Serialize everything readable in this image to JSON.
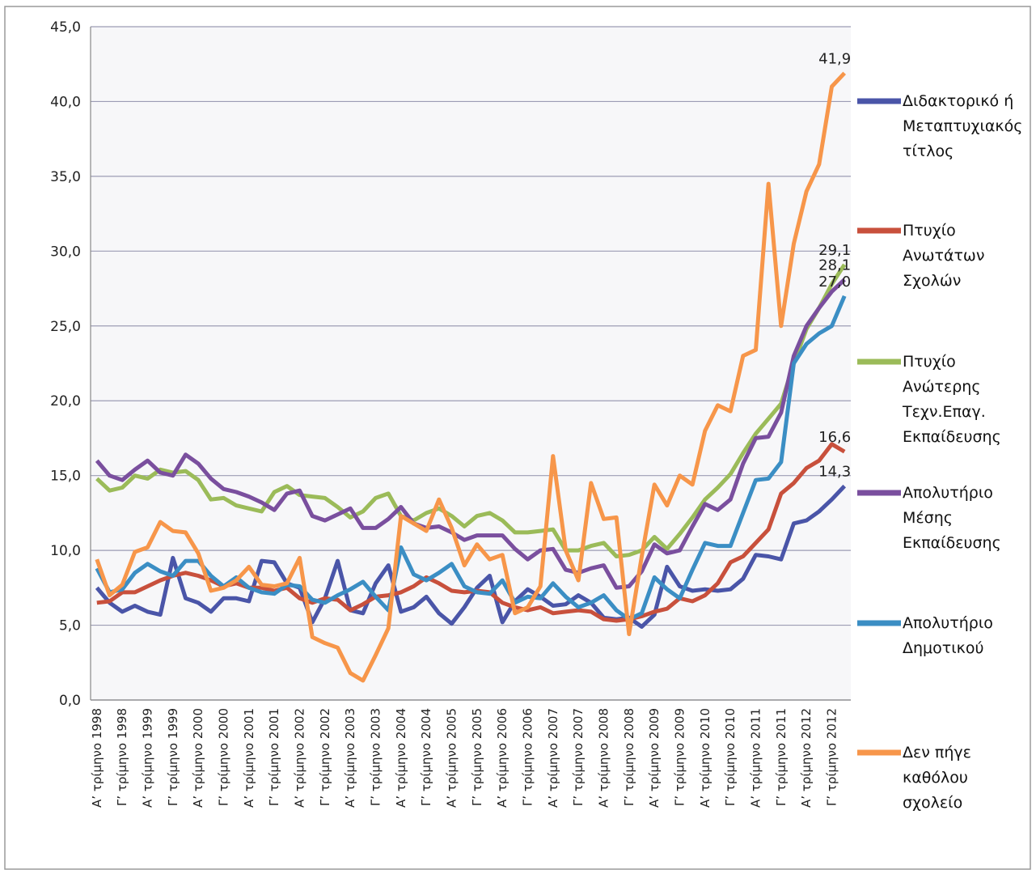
{
  "chart_data": {
    "type": "line",
    "categories": [
      "Α’ τρίμηνο 1998",
      null,
      "Γ’ τρίμηνο 1998",
      null,
      "Α’ τρίμηνο 1999",
      null,
      "Γ’ τρίμηνο 1999",
      null,
      "Α’ τρίμηνο 2000",
      null,
      "Γ’ τρίμηνο 2000",
      null,
      "Α’ τρίμηνο 2001",
      null,
      "Γ’ τρίμηνο 2001",
      null,
      "Α’ τρίμηνο 2002",
      null,
      "Γ’ τρίμηνο 2002",
      null,
      "Α’ τρίμηνο 2003",
      null,
      "Γ’ τρίμηνο 2003",
      null,
      "Α’ τρίμηνο 2004",
      null,
      "Γ’ τρίμηνο 2004",
      null,
      "Α’ τρίμηνο 2005",
      null,
      "Γ’ τρίμηνο 2005",
      null,
      "Α’ τρίμηνο 2006",
      null,
      "Γ’ τρίμηνο 2006",
      null,
      "Α’ τρίμηνο 2007",
      null,
      "Γ’ τρίμηνο 2007",
      null,
      "Α’ τρίμηνο 2008",
      null,
      "Γ’ τρίμηνο 2008",
      null,
      "Α’ τρίμηνο 2009",
      null,
      "Γ’ τρίμηνο 2009",
      null,
      "Α’ τρίμηνο 2010",
      null,
      "Γ’ τρίμηνο 2010",
      null,
      "Α’ τρίμηνο 2011",
      null,
      "Γ’ τρίμηνο 2011",
      null,
      "Α’ τρίμηνο 2012",
      null,
      "Γ’ τρίμηνο 2012",
      null
    ],
    "series": [
      {
        "name": "Διδακτορικό ή Μεταπτυχιακός τίτλος",
        "color": "#4a55a8",
        "values": [
          7.5,
          6.5,
          5.9,
          6.3,
          5.9,
          5.7,
          9.5,
          6.8,
          6.5,
          5.9,
          6.8,
          6.8,
          6.6,
          9.3,
          9.2,
          7.8,
          7.5,
          5.2,
          6.8,
          9.3,
          6.0,
          5.8,
          7.8,
          9.0,
          5.9,
          6.2,
          6.9,
          5.8,
          5.1,
          6.2,
          7.5,
          8.3,
          5.2,
          6.6,
          7.4,
          6.9,
          6.3,
          6.4,
          7.0,
          6.5,
          5.5,
          5.4,
          5.5,
          4.9,
          5.7,
          8.9,
          7.6,
          7.3,
          7.4,
          7.3,
          7.4,
          8.1,
          9.7,
          9.6,
          9.4,
          11.8,
          12.0,
          12.6,
          13.4,
          14.3
        ],
        "value_labels": [
          null,
          null,
          null,
          null,
          null,
          null,
          null,
          null,
          null,
          null,
          null,
          null,
          null,
          null,
          null,
          null,
          null,
          null,
          null,
          null,
          null,
          null,
          null,
          null,
          null,
          null,
          null,
          null,
          null,
          null,
          null,
          null,
          null,
          null,
          null,
          null,
          null,
          null,
          null,
          null,
          null,
          null,
          null,
          null,
          null,
          null,
          null,
          null,
          null,
          null,
          null,
          null,
          null,
          null,
          null,
          null,
          null,
          null,
          null,
          "14,3"
        ]
      },
      {
        "name": "Πτυχίο Ανωτάτων Σχολών",
        "color": "#c8503c",
        "values": [
          6.5,
          6.6,
          7.2,
          7.2,
          7.6,
          8.0,
          8.3,
          8.5,
          8.3,
          8.0,
          7.6,
          7.8,
          7.5,
          7.5,
          7.3,
          7.5,
          6.8,
          6.5,
          6.8,
          6.7,
          6.0,
          6.4,
          6.9,
          7.0,
          7.2,
          7.6,
          8.2,
          7.8,
          7.3,
          7.2,
          7.3,
          7.2,
          6.5,
          6.2,
          6.0,
          6.2,
          5.8,
          5.9,
          6.0,
          5.9,
          5.4,
          5.3,
          5.4,
          5.6,
          5.9,
          6.1,
          6.8,
          6.6,
          7.0,
          7.8,
          9.2,
          9.6,
          10.5,
          11.4,
          13.8,
          14.5,
          15.5,
          16.0,
          17.1,
          16.6
        ],
        "value_labels": [
          null,
          null,
          null,
          null,
          null,
          null,
          null,
          null,
          null,
          null,
          null,
          null,
          null,
          null,
          null,
          null,
          null,
          null,
          null,
          null,
          null,
          null,
          null,
          null,
          null,
          null,
          null,
          null,
          null,
          null,
          null,
          null,
          null,
          null,
          null,
          null,
          null,
          null,
          null,
          null,
          null,
          null,
          null,
          null,
          null,
          null,
          null,
          null,
          null,
          null,
          null,
          null,
          null,
          null,
          null,
          null,
          null,
          null,
          null,
          "16,6"
        ]
      },
      {
        "name": "Πτυχίο Ανώτερης Τεχν.Επαγ. Εκπαίδευσης",
        "color": "#9bbb59",
        "values": [
          14.8,
          14.0,
          14.2,
          15.0,
          14.8,
          15.4,
          15.2,
          15.3,
          14.7,
          13.4,
          13.5,
          13.0,
          12.8,
          12.6,
          13.9,
          14.3,
          13.7,
          13.6,
          13.5,
          12.9,
          12.2,
          12.6,
          13.5,
          13.8,
          12.3,
          12.0,
          12.5,
          12.8,
          12.3,
          11.6,
          12.3,
          12.5,
          12.0,
          11.2,
          11.2,
          11.3,
          11.4,
          10.0,
          10.0,
          10.3,
          10.5,
          9.6,
          9.7,
          10.0,
          10.9,
          10.1,
          11.1,
          12.2,
          13.4,
          14.2,
          15.1,
          16.5,
          17.8,
          18.8,
          19.8,
          22.5,
          24.8,
          26.2,
          27.8,
          29.1
        ],
        "value_labels": [
          null,
          null,
          null,
          null,
          null,
          null,
          null,
          null,
          null,
          null,
          null,
          null,
          null,
          null,
          null,
          null,
          null,
          null,
          null,
          null,
          null,
          null,
          null,
          null,
          null,
          null,
          null,
          null,
          null,
          null,
          null,
          null,
          null,
          null,
          null,
          null,
          null,
          null,
          null,
          null,
          null,
          null,
          null,
          null,
          null,
          null,
          null,
          null,
          null,
          null,
          null,
          null,
          null,
          null,
          null,
          null,
          null,
          null,
          null,
          "29,1"
        ]
      },
      {
        "name": "Απολυτήριο Μέσης Εκπαίδευσης",
        "color": "#7a4f9e",
        "values": [
          16.0,
          15.0,
          14.7,
          15.4,
          16.0,
          15.2,
          15.0,
          16.4,
          15.8,
          14.8,
          14.1,
          13.9,
          13.6,
          13.2,
          12.7,
          13.8,
          14.0,
          12.3,
          12.0,
          12.4,
          12.8,
          11.5,
          11.5,
          12.1,
          12.9,
          11.8,
          11.5,
          11.6,
          11.2,
          10.7,
          11.0,
          11.0,
          11.0,
          10.1,
          9.4,
          10.0,
          10.1,
          8.7,
          8.5,
          8.8,
          9.0,
          7.5,
          7.6,
          8.6,
          10.4,
          9.8,
          10.0,
          11.6,
          13.1,
          12.7,
          13.4,
          15.8,
          17.5,
          17.6,
          19.2,
          23.0,
          25.0,
          26.2,
          27.3,
          28.1
        ],
        "value_labels": [
          null,
          null,
          null,
          null,
          null,
          null,
          null,
          null,
          null,
          null,
          null,
          null,
          null,
          null,
          null,
          null,
          null,
          null,
          null,
          null,
          null,
          null,
          null,
          null,
          null,
          null,
          null,
          null,
          null,
          null,
          null,
          null,
          null,
          null,
          null,
          null,
          null,
          null,
          null,
          null,
          null,
          null,
          null,
          null,
          null,
          null,
          null,
          null,
          null,
          null,
          null,
          null,
          null,
          null,
          null,
          null,
          null,
          null,
          null,
          "28,1"
        ]
      },
      {
        "name": "Απολυτήριο Δημοτικού",
        "color": "#3b8ec4",
        "values": [
          8.8,
          7.2,
          7.4,
          8.5,
          9.1,
          8.6,
          8.3,
          9.3,
          9.3,
          8.3,
          7.6,
          8.2,
          7.5,
          7.2,
          7.1,
          7.7,
          7.6,
          6.7,
          6.5,
          7.0,
          7.4,
          7.9,
          6.9,
          6.0,
          10.2,
          8.4,
          8.0,
          8.5,
          9.1,
          7.6,
          7.2,
          7.1,
          8.0,
          6.5,
          6.9,
          6.8,
          7.8,
          6.9,
          6.2,
          6.5,
          7.0,
          6.0,
          5.4,
          5.8,
          8.2,
          7.4,
          6.8,
          8.7,
          10.5,
          10.3,
          10.3,
          12.5,
          14.7,
          14.8,
          15.9,
          22.5,
          23.8,
          24.5,
          25.0,
          27.0
        ],
        "value_labels": [
          null,
          null,
          null,
          null,
          null,
          null,
          null,
          null,
          null,
          null,
          null,
          null,
          null,
          null,
          null,
          null,
          null,
          null,
          null,
          null,
          null,
          null,
          null,
          null,
          null,
          null,
          null,
          null,
          null,
          null,
          null,
          null,
          null,
          null,
          null,
          null,
          null,
          null,
          null,
          null,
          null,
          null,
          null,
          null,
          null,
          null,
          null,
          null,
          null,
          null,
          null,
          null,
          null,
          null,
          null,
          null,
          null,
          null,
          null,
          "27,0"
        ]
      },
      {
        "name": "Δεν πήγε καθόλου σχολείο",
        "color": "#f7964a",
        "values": [
          9.4,
          7.0,
          7.7,
          9.9,
          10.2,
          11.9,
          11.3,
          11.2,
          9.8,
          7.3,
          7.5,
          8.0,
          8.9,
          7.7,
          7.6,
          7.8,
          9.5,
          4.2,
          3.8,
          3.5,
          1.8,
          1.3,
          3.0,
          4.8,
          12.3,
          11.8,
          11.3,
          13.4,
          11.5,
          9.0,
          10.4,
          9.4,
          9.7,
          5.8,
          6.2,
          7.6,
          16.3,
          10.0,
          8.0,
          14.5,
          12.1,
          12.2,
          4.4,
          9.6,
          14.4,
          13.0,
          15.0,
          14.4,
          18.0,
          19.7,
          19.3,
          23.0,
          23.4,
          34.5,
          25.0,
          30.5,
          34.0,
          35.8,
          41.0,
          41.9
        ],
        "value_labels": [
          null,
          null,
          null,
          null,
          null,
          null,
          null,
          null,
          null,
          null,
          null,
          null,
          null,
          null,
          null,
          null,
          null,
          null,
          null,
          null,
          null,
          null,
          null,
          null,
          null,
          null,
          null,
          null,
          null,
          null,
          null,
          null,
          null,
          null,
          null,
          null,
          null,
          null,
          null,
          null,
          null,
          null,
          null,
          null,
          null,
          null,
          null,
          null,
          null,
          null,
          null,
          null,
          null,
          null,
          null,
          null,
          null,
          null,
          null,
          "41,9"
        ]
      }
    ],
    "ylim": [
      0,
      45
    ],
    "yticks": [
      {
        "value": 0,
        "label": "0,0"
      },
      {
        "value": 5,
        "label": "5,0"
      },
      {
        "value": 10,
        "label": "10,0"
      },
      {
        "value": 15,
        "label": "15,0"
      },
      {
        "value": 20,
        "label": "20,0"
      },
      {
        "value": 25,
        "label": "25,0"
      },
      {
        "value": 30,
        "label": "30,0"
      },
      {
        "value": 35,
        "label": "35,0"
      },
      {
        "value": 40,
        "label": "40,0"
      },
      {
        "value": 45,
        "label": "45,0"
      }
    ],
    "grid": true,
    "legend": "right"
  }
}
